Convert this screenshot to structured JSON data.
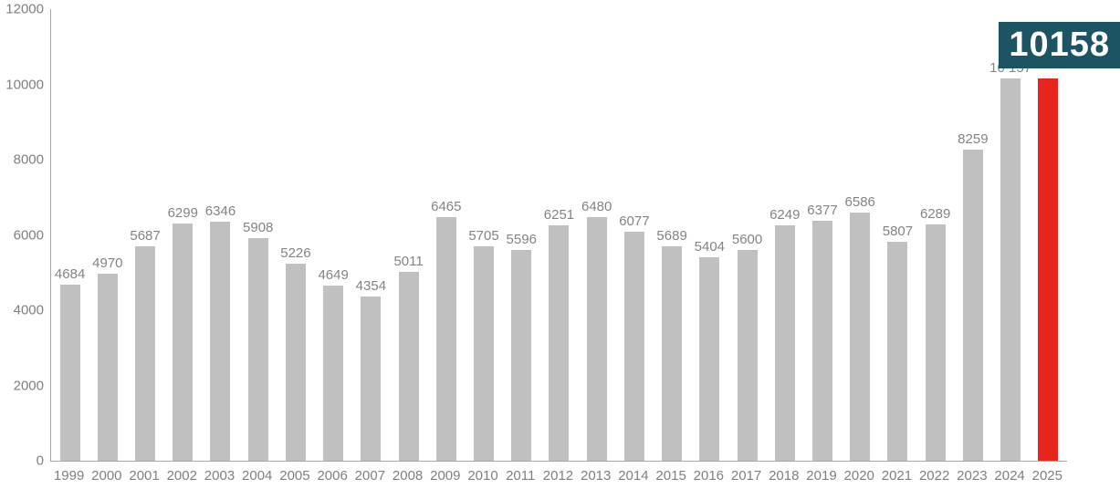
{
  "chart_data": {
    "type": "bar",
    "title": "",
    "xlabel": "",
    "ylabel": "",
    "categories": [
      "1999",
      "2000",
      "2001",
      "2002",
      "2003",
      "2004",
      "2005",
      "2006",
      "2007",
      "2008",
      "2009",
      "2010",
      "2011",
      "2012",
      "2013",
      "2014",
      "2015",
      "2016",
      "2017",
      "2018",
      "2019",
      "2020",
      "2021",
      "2022",
      "2023",
      "2024",
      "2025"
    ],
    "values": [
      4684,
      4970,
      5687,
      6299,
      6346,
      5908,
      5226,
      4649,
      4354,
      5011,
      6465,
      5705,
      5596,
      6251,
      6480,
      6077,
      5689,
      5404,
      5600,
      6249,
      6377,
      6586,
      5807,
      6289,
      8259,
      10157,
      10158
    ],
    "bar_labels": [
      "4684",
      "4970",
      "5687",
      "6299",
      "6346",
      "5908",
      "5226",
      "4649",
      "4354",
      "5011",
      "6465",
      "5705",
      "5596",
      "6251",
      "6480",
      "6077",
      "5689",
      "5404",
      "5600",
      "6249",
      "6377",
      "6586",
      "5807",
      "6289",
      "8259",
      "10 157",
      ""
    ],
    "ylim": [
      0,
      12000
    ],
    "ytick_labels": [
      "0",
      "2000",
      "4000",
      "6000",
      "8000",
      "10000",
      "12000"
    ],
    "ytick_values": [
      0,
      2000,
      4000,
      6000,
      8000,
      10000,
      12000
    ],
    "grid": false,
    "legend": null,
    "highlight_index": 26,
    "callout": {
      "text": "10158"
    },
    "colors": {
      "bar": "#c0c0c0",
      "highlight": "#e8241f",
      "axis": "#a6a6a6",
      "label": "#848484",
      "tick_label": "#808080",
      "callout_bg": "#1d5464",
      "callout_text": "#ffffff"
    }
  }
}
